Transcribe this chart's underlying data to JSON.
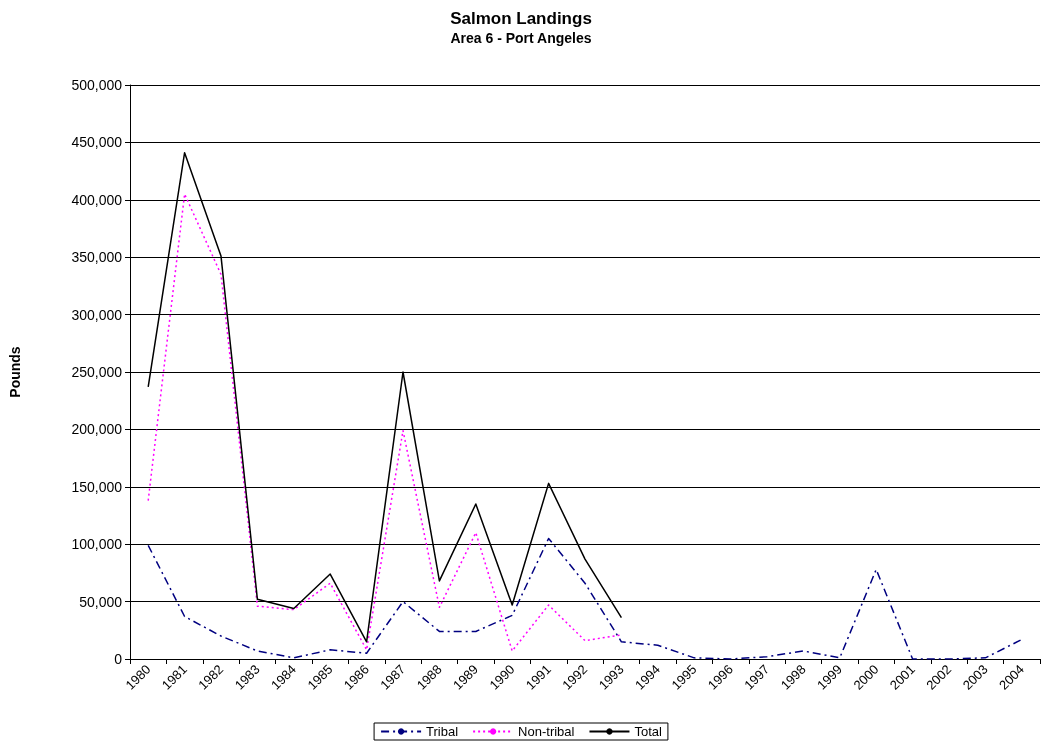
{
  "chart_data": {
    "type": "line",
    "title": "Salmon Landings",
    "subtitle": "Area 6 - Port Angeles",
    "ylabel": "Pounds",
    "categories": [
      "1980",
      "1981",
      "1982",
      "1983",
      "1984",
      "1985",
      "1986",
      "1987",
      "1988",
      "1989",
      "1990",
      "1991",
      "1992",
      "1993",
      "1994",
      "1995",
      "1996",
      "1997",
      "1998",
      "1999",
      "2000",
      "2001",
      "2002",
      "2003",
      "2004"
    ],
    "series": [
      {
        "name": "Tribal",
        "color": "#000080",
        "line_style": "dashed",
        "values": [
          99000,
          37000,
          20000,
          7000,
          1000,
          8000,
          5000,
          50000,
          24000,
          24000,
          38000,
          105000,
          66000,
          15000,
          12000,
          1000,
          0,
          2000,
          7000,
          1000,
          78000,
          0,
          0,
          1000,
          17000
        ]
      },
      {
        "name": "Non-tribal",
        "color": "#ff00ff",
        "line_style": "dotted",
        "values": [
          138000,
          405000,
          335000,
          46000,
          43000,
          66000,
          8000,
          199000,
          45000,
          110000,
          7000,
          47000,
          16000,
          21000,
          null,
          null,
          null,
          null,
          null,
          null,
          null,
          null,
          null,
          null,
          null
        ]
      },
      {
        "name": "Total",
        "color": "#000000",
        "line_style": "solid",
        "values": [
          237000,
          441000,
          351000,
          52000,
          44000,
          74000,
          15000,
          250000,
          68000,
          135000,
          47000,
          153000,
          87000,
          36000,
          null,
          null,
          null,
          null,
          null,
          null,
          null,
          null,
          null,
          null,
          null
        ]
      }
    ],
    "ylim": [
      0,
      500000
    ],
    "yticks": [
      {
        "value": 0,
        "label": "0"
      },
      {
        "value": 50000,
        "label": "50,000"
      },
      {
        "value": 100000,
        "label": "100,000"
      },
      {
        "value": 150000,
        "label": "150,000"
      },
      {
        "value": 200000,
        "label": "200,000"
      },
      {
        "value": 250000,
        "label": "250,000"
      },
      {
        "value": 300000,
        "label": "300,000"
      },
      {
        "value": 350000,
        "label": "350,000"
      },
      {
        "value": 400000,
        "label": "400,000"
      },
      {
        "value": 450000,
        "label": "450,000"
      },
      {
        "value": 500000,
        "label": "500,000"
      }
    ],
    "grid": "y",
    "legend": "bottom",
    "marker": "none"
  }
}
